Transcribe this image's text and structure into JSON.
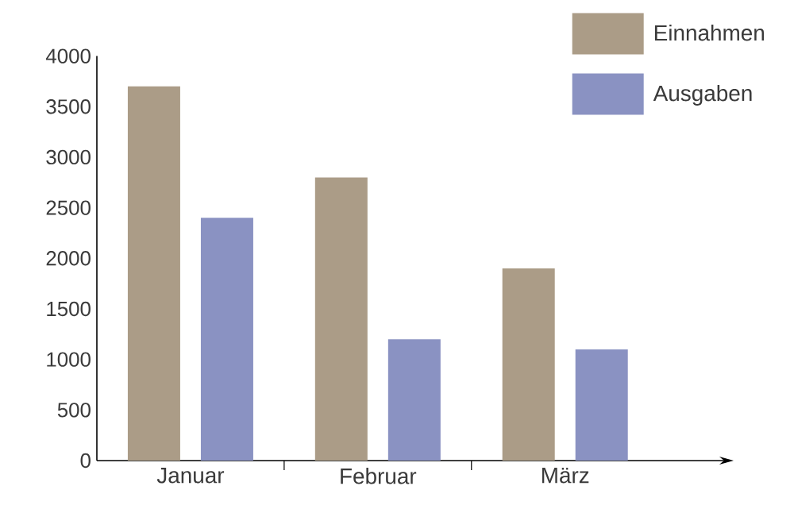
{
  "chart_data": {
    "type": "bar",
    "categories": [
      "Januar",
      "Februar",
      "März"
    ],
    "series": [
      {
        "name": "Einnahmen",
        "color": "#ab9c87",
        "values": [
          3700,
          2800,
          1900
        ]
      },
      {
        "name": "Ausgaben",
        "color": "#8a92c2",
        "values": [
          2400,
          1200,
          1100
        ]
      }
    ],
    "ylim": [
      0,
      4000
    ],
    "yticks": [
      0,
      500,
      1000,
      1500,
      2000,
      2500,
      3000,
      3500,
      4000
    ],
    "legend": "top right"
  }
}
